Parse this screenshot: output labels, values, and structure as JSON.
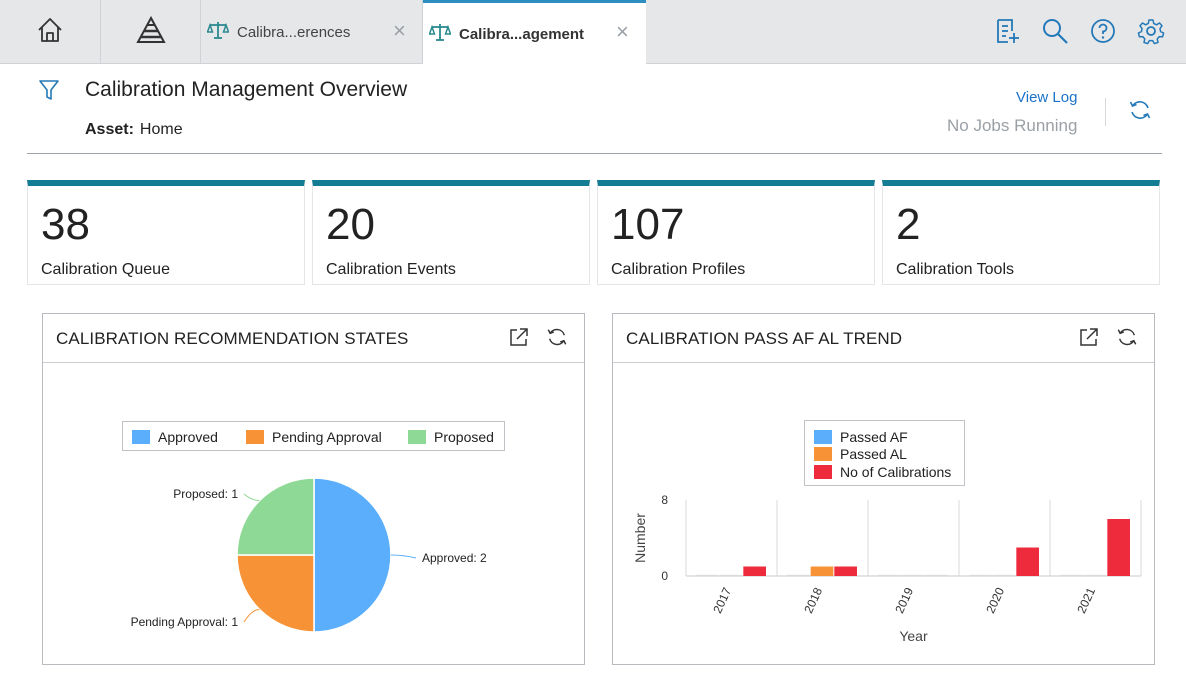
{
  "tabs": [
    {
      "label": "Calibra...erences"
    },
    {
      "label": "Calibra...agement"
    }
  ],
  "header": {
    "title": "Calibration Management Overview",
    "asset_label": "Asset:",
    "asset_value": "Home",
    "view_log": "View Log",
    "jobs_status": "No Jobs Running"
  },
  "kpis": [
    {
      "value": "38",
      "label": "Calibration Queue"
    },
    {
      "value": "20",
      "label": "Calibration Events"
    },
    {
      "value": "107",
      "label": "Calibration Profiles"
    },
    {
      "value": "2",
      "label": "Calibration Tools"
    }
  ],
  "panels": {
    "recommendations_title": "CALIBRATION RECOMMENDATION STATES",
    "trend_title": "CALIBRATION PASS AF AL TREND"
  },
  "colors": {
    "accent": "#137d94",
    "link": "#1a73c8",
    "icon": "#2479b8",
    "approved": "#5aaefc",
    "pending": "#f79336",
    "proposed": "#8fd996",
    "passed_af": "#5aaefc",
    "passed_al": "#f79336",
    "calibrations": "#ed2b3c"
  },
  "chart_data": [
    {
      "type": "pie",
      "title": "CALIBRATION RECOMMENDATION STATES",
      "legend_position": "top",
      "slices": [
        {
          "name": "Approved",
          "value": 2,
          "label": "Approved: 2"
        },
        {
          "name": "Pending Approval",
          "value": 1,
          "label": "Pending Approval: 1"
        },
        {
          "name": "Proposed",
          "value": 1,
          "label": "Proposed: 1"
        }
      ]
    },
    {
      "type": "bar",
      "title": "CALIBRATION PASS AF AL TREND",
      "xlabel": "Year",
      "ylabel": "Number",
      "categories": [
        "2017",
        "2018",
        "2019",
        "2020",
        "2021"
      ],
      "yticks": [
        "0",
        "8"
      ],
      "ylim": [
        0,
        8
      ],
      "legend_position": "top",
      "series": [
        {
          "name": "Passed AF",
          "values": [
            0,
            0,
            0,
            0,
            0
          ]
        },
        {
          "name": "Passed AL",
          "values": [
            0,
            1,
            0,
            0,
            0
          ]
        },
        {
          "name": "No of Calibrations",
          "values": [
            1,
            1,
            0,
            3,
            6
          ]
        }
      ]
    }
  ]
}
